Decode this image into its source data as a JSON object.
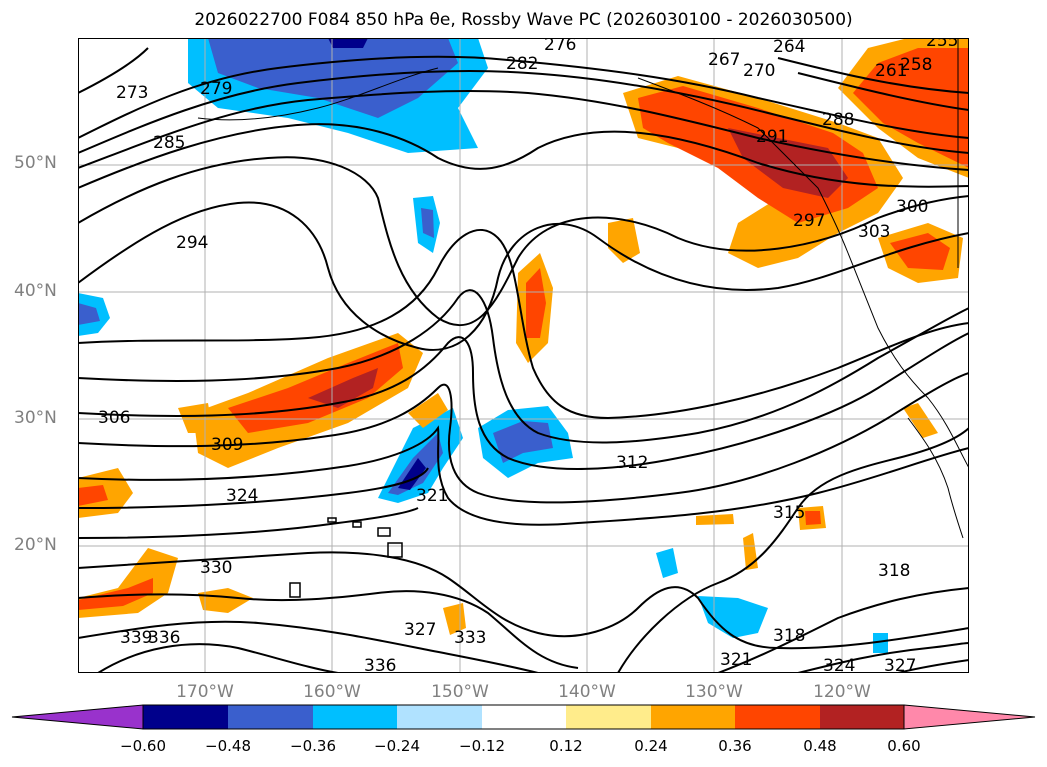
{
  "title": "2026022700 F084 850 hPa θe, Rossby Wave PC (2026030100 - 2026030500)",
  "map": {
    "extent": {
      "lon_min": -180,
      "lon_max": -110,
      "lat_min": 10,
      "lat_max": 60
    },
    "lat_labels": [
      "50°N",
      "40°N",
      "30°N",
      "20°N"
    ],
    "lon_labels": [
      "170°W",
      "160°W",
      "150°W",
      "140°W",
      "130°W",
      "120°W"
    ],
    "contour_labels": [
      "276",
      "264",
      "273",
      "267",
      "270",
      "255",
      "282",
      "261",
      "258",
      "279",
      "285",
      "291",
      "288",
      "300",
      "297",
      "303",
      "294",
      "306",
      "309",
      "312",
      "324",
      "321",
      "315",
      "330",
      "318",
      "339",
      "336",
      "327",
      "333",
      "336",
      "318",
      "321",
      "324",
      "327"
    ]
  },
  "colorbar": {
    "ticks": [
      "−0.60",
      "−0.48",
      "−0.36",
      "−0.24",
      "−0.12",
      "0.12",
      "0.24",
      "0.36",
      "0.48",
      "0.60"
    ],
    "colors": {
      "under": "#9932cc",
      "n060": "#00008b",
      "n048": "#3a5fcd",
      "n036": "#00bfff",
      "n024": "#b0e2ff",
      "neutral": "#ffffff",
      "p012": "#ffec8b",
      "p024": "#ffa500",
      "p036": "#ff4500",
      "p048": "#b22222",
      "over": "#ff88aa"
    }
  }
}
